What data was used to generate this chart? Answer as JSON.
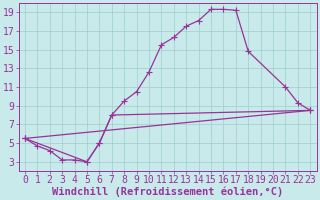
{
  "xlabel": "Windchill (Refroidissement éolien,°C)",
  "xlim": [
    -0.5,
    23.5
  ],
  "ylim": [
    2.0,
    20.0
  ],
  "xticks": [
    0,
    1,
    2,
    3,
    4,
    5,
    6,
    7,
    8,
    9,
    10,
    11,
    12,
    13,
    14,
    15,
    16,
    17,
    18,
    19,
    20,
    21,
    22,
    23
  ],
  "yticks": [
    3,
    5,
    7,
    9,
    11,
    13,
    15,
    17,
    19
  ],
  "bg_color": "#c8eaea",
  "grid_color": "#9ecece",
  "line_color": "#993399",
  "line1_x": [
    0,
    1,
    2,
    3,
    4,
    5,
    6,
    7,
    8,
    9,
    10,
    11,
    12,
    13,
    14,
    15,
    16,
    17,
    18,
    21,
    22,
    23
  ],
  "line1_y": [
    5.5,
    4.7,
    4.2,
    3.2,
    3.2,
    3.0,
    5.0,
    8.0,
    9.5,
    10.5,
    12.6,
    15.5,
    16.3,
    17.5,
    18.1,
    19.3,
    19.3,
    19.2,
    14.8,
    11.0,
    9.3,
    8.5
  ],
  "line2_x": [
    0,
    5,
    6,
    7,
    23
  ],
  "line2_y": [
    5.5,
    3.0,
    5.0,
    8.0,
    8.5
  ],
  "line3_x": [
    0,
    23
  ],
  "line3_y": [
    5.5,
    8.5
  ],
  "font_size_xlabel": 7.5,
  "font_size_ticks": 7.0,
  "marker_size": 2.5,
  "linewidth": 0.9
}
